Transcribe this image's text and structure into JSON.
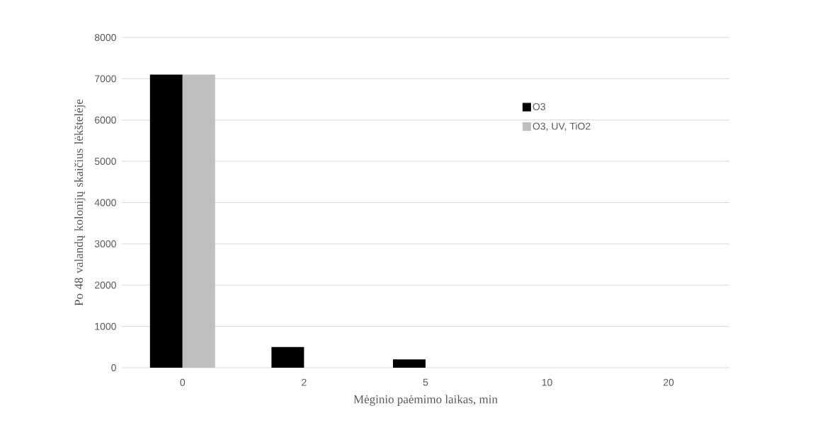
{
  "chart_data": {
    "type": "bar",
    "xlabel": "Mėginio paėmimo laikas, min",
    "ylabel": "Po 48 valandų kolonijų skaičius lėkštelėje",
    "categories": [
      "0",
      "2",
      "5",
      "10",
      "20"
    ],
    "series": [
      {
        "name": "O3",
        "color": "#000000",
        "values": [
          7100,
          500,
          200,
          0,
          0
        ]
      },
      {
        "name": "O3, UV, TiO2",
        "color": "#c0bfc0",
        "values": [
          7100,
          0,
          0,
          0,
          0
        ]
      }
    ],
    "ylim": [
      0,
      8000
    ],
    "yticks": [
      0,
      1000,
      2000,
      3000,
      4000,
      5000,
      6000,
      7000,
      8000
    ],
    "grid": "y",
    "legend": "top right"
  }
}
